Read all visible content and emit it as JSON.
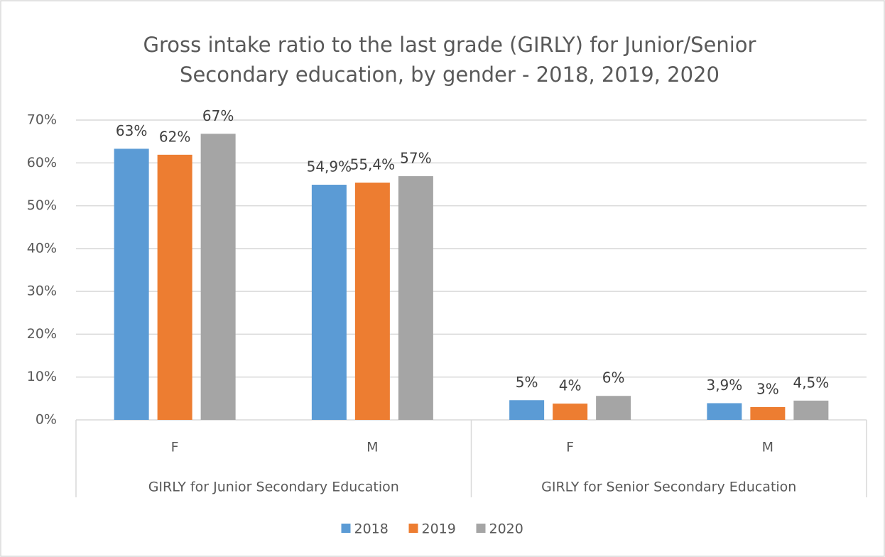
{
  "chart_data": {
    "type": "bar",
    "title": [
      "Gross intake ratio to the last grade (GIRLY) for Junior/Senior",
      "Secondary education, by gender - 2018, 2019, 2020"
    ],
    "groups": [
      {
        "name": "GIRLY for Junior Secondary Education",
        "categories": [
          "F",
          "M"
        ]
      },
      {
        "name": "GIRLY for Senior Secondary Education",
        "categories": [
          "F",
          "M"
        ]
      }
    ],
    "series": [
      {
        "name": "2018",
        "color": "#5b9bd5",
        "values": [
          63.3,
          54.9,
          4.6,
          3.9
        ],
        "value_labels": [
          "63%",
          "54,9%",
          "5%",
          "3,9%"
        ]
      },
      {
        "name": "2019",
        "color": "#ed7d31",
        "values": [
          61.9,
          55.4,
          3.8,
          3.0
        ],
        "value_labels": [
          "62%",
          "55,4%",
          "4%",
          "3%"
        ]
      },
      {
        "name": "2020",
        "color": "#a5a5a5",
        "values": [
          66.8,
          56.9,
          5.6,
          4.5
        ],
        "value_labels": [
          "67%",
          "57%",
          "6%",
          "4,5%"
        ]
      }
    ],
    "ylim": [
      0,
      70
    ],
    "yticks": [
      {
        "value": 0,
        "label": "0%"
      },
      {
        "value": 10,
        "label": "10%"
      },
      {
        "value": 20,
        "label": "20%"
      },
      {
        "value": 30,
        "label": "30%"
      },
      {
        "value": 40,
        "label": "40%"
      },
      {
        "value": 50,
        "label": "50%"
      },
      {
        "value": 60,
        "label": "60%"
      },
      {
        "value": 70,
        "label": "70%"
      }
    ],
    "grid": true,
    "legend": "bottom"
  }
}
